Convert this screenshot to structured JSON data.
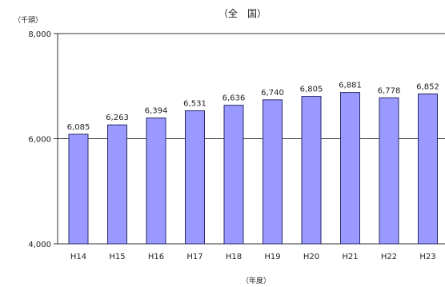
{
  "chart_data": {
    "type": "bar",
    "title": "（全　国）",
    "ylabel": "（千頭）",
    "xlabel": "（年度）",
    "categories": [
      "H14",
      "H15",
      "H16",
      "H17",
      "H18",
      "H19",
      "H20",
      "H21",
      "H22",
      "H23"
    ],
    "values": [
      6085,
      6263,
      6394,
      6531,
      6636,
      6740,
      6805,
      6881,
      6778,
      6852
    ],
    "value_labels": [
      "6,085",
      "6,263",
      "6,394",
      "6,531",
      "6,636",
      "6,740",
      "6,805",
      "6,881",
      "6,778",
      "6,852"
    ],
    "ylim": [
      4000,
      8000
    ],
    "yticks": [
      4000,
      6000,
      8000
    ],
    "ytick_labels": [
      "4,000",
      "6,000",
      "8,000"
    ],
    "grid": true,
    "legend": "none",
    "colors": {
      "bar_fill": "#9999ff",
      "bar_stroke": "#2a2a6a",
      "axis": "#333333",
      "grid": "#333333"
    }
  }
}
